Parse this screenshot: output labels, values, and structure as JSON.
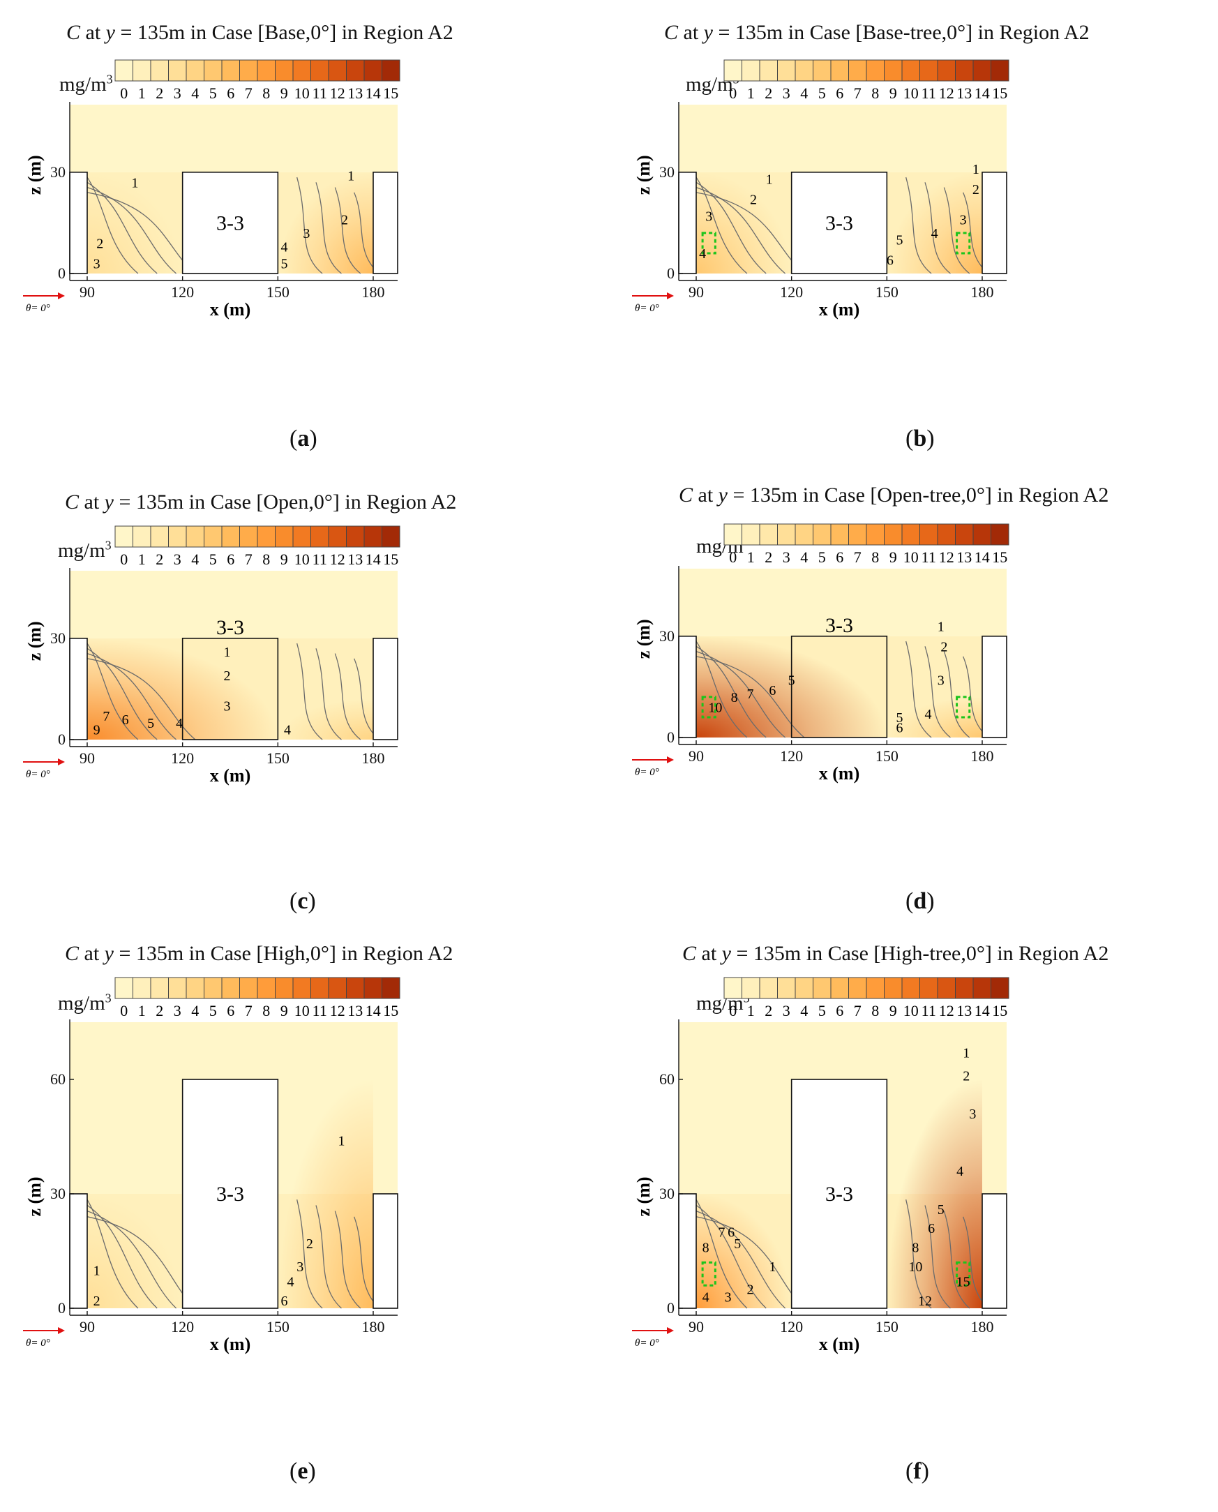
{
  "colorbar": {
    "unit": "mg/m3",
    "ticks": [
      "0",
      "1",
      "2",
      "3",
      "4",
      "5",
      "6",
      "7",
      "8",
      "9",
      "10",
      "11",
      "12",
      "13",
      "14",
      "15"
    ],
    "colors": [
      "#fff6c9",
      "#fff0bc",
      "#ffe8aa",
      "#ffdf98",
      "#ffd484",
      "#ffc870",
      "#ffbb5c",
      "#ffac4a",
      "#ff9c3a",
      "#f98c2c",
      "#f27a22",
      "#e76819",
      "#d95612",
      "#c9450d",
      "#b73609",
      "#a22a07"
    ]
  },
  "axis_labels": {
    "x": "x (m)",
    "z": "z (m)",
    "wind": "θ= 0°",
    "building": "3-3"
  },
  "chart_data": [
    {
      "id": "a",
      "type": "contour",
      "caption": "a",
      "title": {
        "pre": "C",
        "mid": " at ",
        "var": "y",
        "post": " = 135m in Case [Base,0°] in Region A2"
      },
      "xlabel": "x (m)",
      "ylabel": "z (m)",
      "xticks": [
        90,
        120,
        150,
        180
      ],
      "zticks": [
        0,
        30
      ],
      "zmax": 50,
      "building": "3-3",
      "building_z": 30,
      "fluid_top": 30,
      "labels": [
        {
          "t": "1",
          "x": 105,
          "z": 27
        },
        {
          "t": "2",
          "x": 94,
          "z": 9
        },
        {
          "t": "3",
          "x": 93,
          "z": 3
        },
        {
          "t": "1",
          "x": 173,
          "z": 29
        },
        {
          "t": "2",
          "x": 171,
          "z": 16
        },
        {
          "t": "3",
          "x": 159,
          "z": 12
        },
        {
          "t": "4",
          "x": 152,
          "z": 8
        },
        {
          "t": "5",
          "x": 152,
          "z": 3
        }
      ]
    },
    {
      "id": "b",
      "type": "contour",
      "caption": "b",
      "title": {
        "pre": "C",
        "mid": " at ",
        "var": "y",
        "post": " = 135m in Case [Base-tree,0°] in Region A2"
      },
      "xlabel": "x (m)",
      "ylabel": "z (m)",
      "xticks": [
        90,
        120,
        150,
        180
      ],
      "zticks": [
        0,
        30
      ],
      "zmax": 50,
      "building": "3-3",
      "building_z": 30,
      "fluid_top": 30,
      "trees": true,
      "labels": [
        {
          "t": "1",
          "x": 113,
          "z": 28
        },
        {
          "t": "2",
          "x": 108,
          "z": 22
        },
        {
          "t": "3",
          "x": 94,
          "z": 17
        },
        {
          "t": "4",
          "x": 92,
          "z": 6
        },
        {
          "t": "1",
          "x": 178,
          "z": 31
        },
        {
          "t": "2",
          "x": 178,
          "z": 25
        },
        {
          "t": "3",
          "x": 174,
          "z": 16
        },
        {
          "t": "4",
          "x": 165,
          "z": 12
        },
        {
          "t": "5",
          "x": 154,
          "z": 10
        },
        {
          "t": "6",
          "x": 151,
          "z": 4
        }
      ]
    },
    {
      "id": "c",
      "type": "contour",
      "caption": "c",
      "title": {
        "pre": "C",
        "mid": " at ",
        "var": "y",
        "post": " = 135m in Case [Open,0°] in Region A2"
      },
      "xlabel": "x (m)",
      "ylabel": "z (m)",
      "xticks": [
        90,
        120,
        150,
        180
      ],
      "zticks": [
        0,
        30
      ],
      "zmax": 50,
      "building": "3-3",
      "building_z": 30,
      "fluid_top": 30,
      "open": true,
      "labels": [
        {
          "t": "1",
          "x": 134,
          "z": 26
        },
        {
          "t": "2",
          "x": 134,
          "z": 19
        },
        {
          "t": "3",
          "x": 134,
          "z": 10
        },
        {
          "t": "4",
          "x": 119,
          "z": 5
        },
        {
          "t": "5",
          "x": 110,
          "z": 5
        },
        {
          "t": "6",
          "x": 102,
          "z": 6
        },
        {
          "t": "7",
          "x": 96,
          "z": 7
        },
        {
          "t": "9",
          "x": 93,
          "z": 3
        },
        {
          "t": "4",
          "x": 153,
          "z": 3
        }
      ]
    },
    {
      "id": "d",
      "type": "contour",
      "caption": "d",
      "title": {
        "pre": "C",
        "mid": " at ",
        "var": "y",
        "post": " = 135m in Case [Open-tree,0°] in Region A2"
      },
      "xlabel": "x (m)",
      "ylabel": "z (m)",
      "xticks": [
        90,
        120,
        150,
        180
      ],
      "zticks": [
        0,
        30
      ],
      "zmax": 50,
      "building": "3-3",
      "building_z": 30,
      "fluid_top": 30,
      "open": true,
      "trees": true,
      "labels": [
        {
          "t": "1",
          "x": 167,
          "z": 33
        },
        {
          "t": "2",
          "x": 168,
          "z": 27
        },
        {
          "t": "3",
          "x": 167,
          "z": 17
        },
        {
          "t": "4",
          "x": 163,
          "z": 7
        },
        {
          "t": "5",
          "x": 120,
          "z": 17
        },
        {
          "t": "6",
          "x": 114,
          "z": 14
        },
        {
          "t": "7",
          "x": 107,
          "z": 13
        },
        {
          "t": "8",
          "x": 102,
          "z": 12
        },
        {
          "t": "10",
          "x": 96,
          "z": 9
        },
        {
          "t": "5",
          "x": 154,
          "z": 6
        },
        {
          "t": "6",
          "x": 154,
          "z": 3
        }
      ]
    },
    {
      "id": "e",
      "type": "contour",
      "caption": "e",
      "title": {
        "pre": "C",
        "mid": " at ",
        "var": "y",
        "post": " = 135m in Case [High,0°] in Region A2"
      },
      "xlabel": "x (m)",
      "ylabel": "z (m)",
      "xticks": [
        90,
        120,
        150,
        180
      ],
      "zticks": [
        0,
        30,
        60
      ],
      "zmax": 75,
      "building": "3-3",
      "building_z": 60,
      "fluid_top": 30,
      "labels": [
        {
          "t": "1",
          "x": 93,
          "z": 10
        },
        {
          "t": "2",
          "x": 93,
          "z": 2
        },
        {
          "t": "1",
          "x": 170,
          "z": 44
        },
        {
          "t": "2",
          "x": 160,
          "z": 17
        },
        {
          "t": "3",
          "x": 157,
          "z": 11
        },
        {
          "t": "4",
          "x": 154,
          "z": 7
        },
        {
          "t": "6",
          "x": 152,
          "z": 2
        }
      ]
    },
    {
      "id": "f",
      "type": "contour",
      "caption": "f",
      "title": {
        "pre": "C",
        "mid": " at ",
        "var": "y",
        "post": " = 135m in Case [High-tree,0°] in Region A2"
      },
      "xlabel": "x (m)",
      "ylabel": "z (m)",
      "xticks": [
        90,
        120,
        150,
        180
      ],
      "zticks": [
        0,
        30,
        60
      ],
      "zmax": 75,
      "building": "3-3",
      "building_z": 60,
      "fluid_top": 30,
      "trees": true,
      "labels": [
        {
          "t": "1",
          "x": 175,
          "z": 67
        },
        {
          "t": "2",
          "x": 175,
          "z": 61
        },
        {
          "t": "3",
          "x": 177,
          "z": 51
        },
        {
          "t": "4",
          "x": 173,
          "z": 36
        },
        {
          "t": "5",
          "x": 167,
          "z": 26
        },
        {
          "t": "6",
          "x": 164,
          "z": 21
        },
        {
          "t": "8",
          "x": 159,
          "z": 16
        },
        {
          "t": "10",
          "x": 159,
          "z": 11
        },
        {
          "t": "12",
          "x": 162,
          "z": 2
        },
        {
          "t": "15",
          "x": 174,
          "z": 7
        },
        {
          "t": "7",
          "x": 98,
          "z": 20
        },
        {
          "t": "6",
          "x": 101,
          "z": 20
        },
        {
          "t": "5",
          "x": 103,
          "z": 17
        },
        {
          "t": "8",
          "x": 93,
          "z": 16
        },
        {
          "t": "4",
          "x": 93,
          "z": 3
        },
        {
          "t": "3",
          "x": 100,
          "z": 3
        },
        {
          "t": "2",
          "x": 107,
          "z": 5
        },
        {
          "t": "1",
          "x": 114,
          "z": 11
        }
      ]
    }
  ]
}
